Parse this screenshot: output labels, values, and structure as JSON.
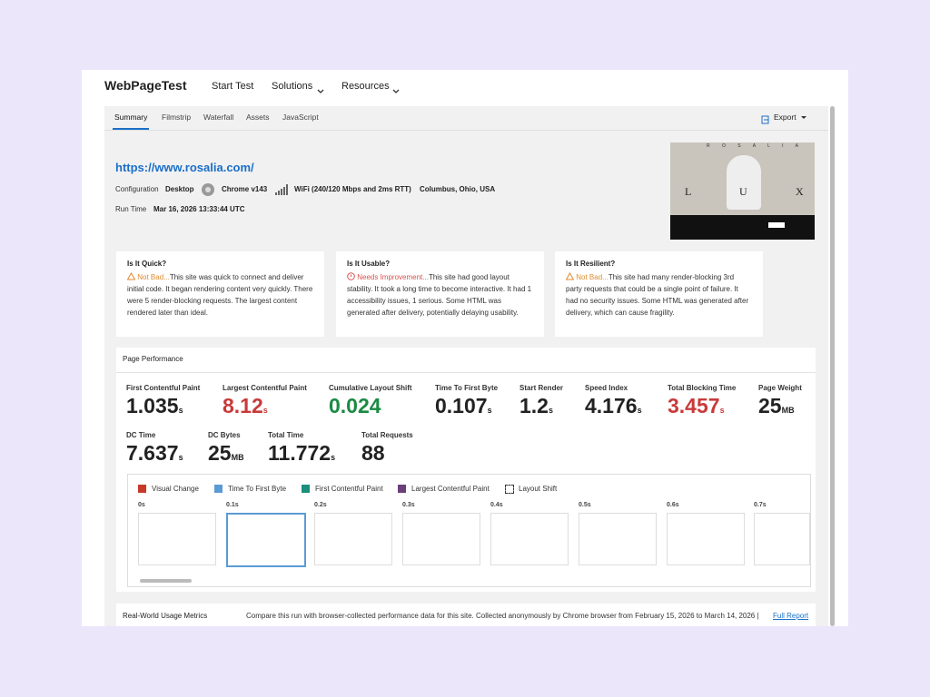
{
  "header": {
    "brand": "WebPageTest",
    "nav": [
      "Start Test",
      "Solutions",
      "Resources"
    ]
  },
  "tabs": [
    "Summary",
    "Filmstrip",
    "Waterfall",
    "Assets",
    "JavaScript"
  ],
  "export": "Export",
  "summary": {
    "url": "https://www.rosalia.com/",
    "config_label": "Configuration",
    "device": "Desktop",
    "browser": "Chrome v143",
    "connection": "WiFi (240/120 Mbps and 2ms RTT)",
    "location": "Columbus, Ohio, USA",
    "runtime_label": "Run Time",
    "runtime": "Mar 16, 2026 13:33:44 UTC"
  },
  "thumbnail": {
    "brand": "R O S A L I A",
    "letters": [
      "L",
      "U",
      "X"
    ]
  },
  "cards": [
    {
      "title": "Is It Quick?",
      "status": "Not Bad...",
      "text": "This site was quick to connect and deliver initial code. It began rendering content very quickly. There were 5 render-blocking requests. The largest content rendered later than ideal."
    },
    {
      "title": "Is It Usable?",
      "status": "Needs Improvement...",
      "text": "This site had good layout stability. It took a long time to become interactive. It had 1 accessibility issues, 1 serious. Some HTML was generated after delivery, potentially delaying usability."
    },
    {
      "title": "Is It Resilient?",
      "status": "Not Bad...",
      "text": "This site had many render-blocking 3rd party requests that could be a single point of failure. It had no security issues. Some HTML was generated after delivery, which can cause fragility."
    }
  ],
  "performance": {
    "title": "Page Performance",
    "metrics": [
      {
        "label": "First Contentful Paint",
        "value": "1.035",
        "unit": "s"
      },
      {
        "label": "Largest Contentful Paint",
        "value": "8.12",
        "unit": "s",
        "color": "#c83a3a"
      },
      {
        "label": "Cumulative Layout Shift",
        "value": "0.024",
        "color": "#1b8a43"
      },
      {
        "label": "Time To First Byte",
        "value": "0.107",
        "unit": "s"
      },
      {
        "label": "Start Render",
        "value": "1.2",
        "unit": "s"
      },
      {
        "label": "Speed Index",
        "value": "4.176",
        "unit": "s"
      },
      {
        "label": "Total Blocking Time",
        "value": "3.457",
        "unit": "s",
        "color": "#c83a3a"
      },
      {
        "label": "Page Weight",
        "value": "25",
        "unit": "MB"
      },
      {
        "label": "DC Time",
        "value": "7.637",
        "unit": "s"
      },
      {
        "label": "DC Bytes",
        "value": "25",
        "unit": "MB"
      },
      {
        "label": "Total Time",
        "value": "11.772",
        "unit": "s"
      },
      {
        "label": "Total Requests",
        "value": "88"
      }
    ]
  },
  "filmstrip": {
    "legend": [
      {
        "name": "Visual Change",
        "color": "#c8392b"
      },
      {
        "name": "Time To First Byte",
        "color": "#5b9bd5"
      },
      {
        "name": "First Contentful Paint",
        "color": "#1a8f7a"
      },
      {
        "name": "Largest Contentful Paint",
        "color": "#6b3f7a"
      },
      {
        "name": "Layout Shift"
      }
    ],
    "times": [
      "0s",
      "0.1s",
      "0.2s",
      "0.3s",
      "0.4s",
      "0.5s",
      "0.6s",
      "0.7s"
    ]
  },
  "real_world": {
    "title": "Real-World Usage Metrics",
    "text": "Compare this run with browser-collected performance data for this site. Collected anonymously by Chrome browser from February 15, 2026 to March 14, 2026 |",
    "link": "Full Report"
  }
}
